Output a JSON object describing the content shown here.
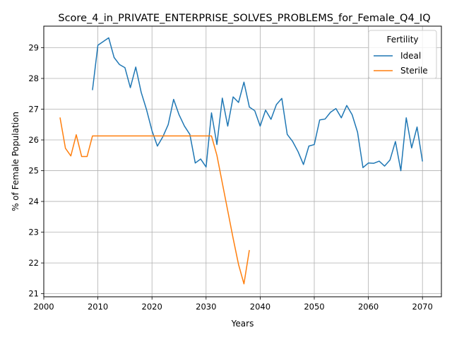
{
  "chart_data": {
    "type": "line",
    "title": "Score_4_in_PRIVATE_ENTERPRISE_SOLVES_PROBLEMS_for_Female_Q4_IQ",
    "xlabel": "Years",
    "ylabel": "% of Female Population",
    "xlim": [
      2000,
      2073.5
    ],
    "ylim": [
      20.9,
      29.7
    ],
    "xticks": [
      2000,
      2010,
      2020,
      2030,
      2040,
      2050,
      2060,
      2070
    ],
    "yticks": [
      21,
      22,
      23,
      24,
      25,
      26,
      27,
      28,
      29
    ],
    "grid": true,
    "legend": {
      "title": "Fertility",
      "placement": "top-right"
    },
    "series": [
      {
        "name": "Ideal",
        "color": "#1f77b4",
        "x": [
          2009,
          2010,
          2011,
          2012,
          2013,
          2014,
          2015,
          2016,
          2017,
          2018,
          2019,
          2020,
          2021,
          2022,
          2023,
          2024,
          2025,
          2026,
          2027,
          2028,
          2029,
          2030,
          2031,
          2032,
          2033,
          2034,
          2035,
          2036,
          2037,
          2038,
          2039,
          2040,
          2041,
          2042,
          2043,
          2044,
          2045,
          2046,
          2047,
          2048,
          2049,
          2050,
          2051,
          2052,
          2053,
          2054,
          2055,
          2056,
          2057,
          2058,
          2059,
          2060,
          2061,
          2062,
          2063,
          2064,
          2065,
          2066,
          2067,
          2068,
          2069,
          2070
        ],
        "y": [
          27.62,
          29.08,
          29.2,
          29.32,
          28.68,
          28.45,
          28.35,
          27.7,
          28.37,
          27.55,
          26.98,
          26.3,
          25.8,
          26.1,
          26.5,
          27.32,
          26.82,
          26.45,
          26.18,
          25.25,
          25.38,
          25.12,
          26.88,
          25.85,
          27.36,
          26.45,
          27.4,
          27.22,
          27.88,
          27.07,
          26.95,
          26.45,
          26.97,
          26.67,
          27.15,
          27.35,
          26.18,
          25.95,
          25.62,
          25.2,
          25.8,
          25.85,
          26.65,
          26.68,
          26.9,
          27.02,
          26.72,
          27.12,
          26.82,
          26.25,
          25.1,
          25.25,
          25.24,
          25.31,
          25.15,
          25.35,
          25.95,
          25.0,
          26.72,
          25.74,
          26.42,
          25.3
        ]
      },
      {
        "name": "Sterile",
        "color": "#ff7f0e",
        "x": [
          2003,
          2004,
          2005,
          2006,
          2007,
          2008,
          2009,
          2010,
          2011,
          2012,
          2013,
          2014,
          2015,
          2016,
          2017,
          2018,
          2019,
          2020,
          2021,
          2022,
          2023,
          2024,
          2025,
          2026,
          2027,
          2028,
          2029,
          2030,
          2031,
          2032,
          2033,
          2034,
          2035,
          2036,
          2037,
          2038
        ],
        "y": [
          26.73,
          25.73,
          25.48,
          26.17,
          25.46,
          25.46,
          26.13,
          26.13,
          26.13,
          26.13,
          26.13,
          26.13,
          26.13,
          26.13,
          26.13,
          26.13,
          26.13,
          26.13,
          26.13,
          26.13,
          26.13,
          26.13,
          26.13,
          26.13,
          26.13,
          26.13,
          26.13,
          26.13,
          26.13,
          25.5,
          24.6,
          23.7,
          22.8,
          21.95,
          21.32,
          22.42
        ]
      }
    ]
  }
}
